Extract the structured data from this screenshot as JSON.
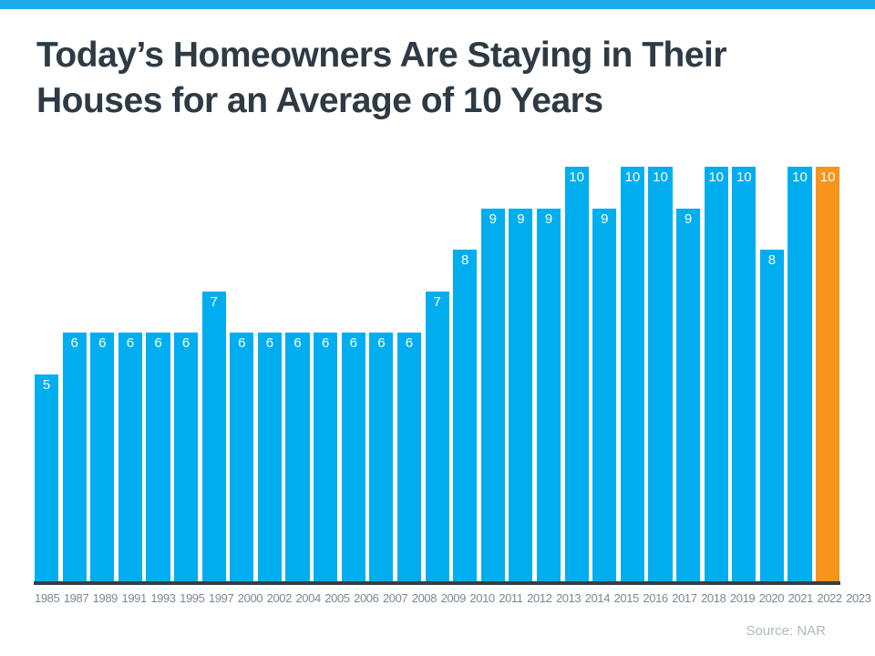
{
  "header": {
    "top_bar_color": "#1CACE8",
    "title_line1": "Today’s Homeowners Are Staying in Their",
    "title_line2": "Houses for an Average of 10 Years",
    "title_color": "#2E3A44"
  },
  "chart_data": {
    "type": "bar",
    "title": "Today’s Homeowners Are Staying in Their Houses for an Average of 10 Years",
    "categories": [
      "1985",
      "1987",
      "1989",
      "1991",
      "1993",
      "1995",
      "1997",
      "2000",
      "2002",
      "2004",
      "2005",
      "2006",
      "2007",
      "2008",
      "2009",
      "2010",
      "2011",
      "2012",
      "2013",
      "2014",
      "2015",
      "2016",
      "2017",
      "2018",
      "2019",
      "2020",
      "2021",
      "2022",
      "2023"
    ],
    "values": [
      5,
      6,
      6,
      6,
      6,
      6,
      7,
      6,
      6,
      6,
      6,
      6,
      6,
      6,
      7,
      8,
      9,
      9,
      9,
      10,
      9,
      10,
      10,
      9,
      10,
      10,
      8,
      10,
      10
    ],
    "xlabel": "",
    "ylabel": "",
    "ylim": [
      0,
      10
    ],
    "grid": false,
    "legend": false,
    "bar_color": "#00AEEF",
    "highlight_color": "#F7941D",
    "highlight_index": 28,
    "value_label_color": "#FFFFFF",
    "axis_line_color": "#333F48",
    "tick_label_color": "#7C8791",
    "value_labels_shown": true
  },
  "footer": {
    "source_label": "Source: NAR",
    "source_color": "#B0B8BF"
  }
}
